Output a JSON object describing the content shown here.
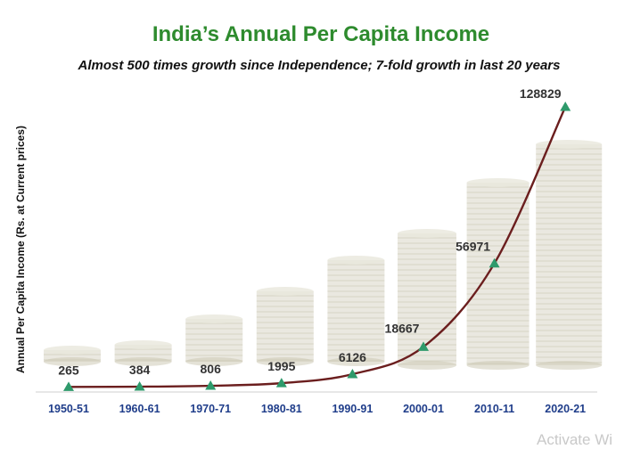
{
  "chart_data": {
    "type": "line",
    "title": "India’s Annual Per Capita Income",
    "subtitle": "Almost 500 times growth since Independence; 7-fold growth in last 20 years",
    "ylabel": "Annual Per Capita Income (Rs. at Current prices)",
    "xlabel": "",
    "categories": [
      "1950-51",
      "1960-61",
      "1970-71",
      "1980-81",
      "1990-91",
      "2000-01",
      "2010-11",
      "2020-21"
    ],
    "series": [
      {
        "values": [
          265,
          384,
          806,
          1995,
          6126,
          18667,
          56971,
          128829
        ]
      }
    ],
    "labels": [
      "265",
      "384",
      "806",
      "1995",
      "6126",
      "18667",
      "56971",
      "128829"
    ],
    "ylim": [
      0,
      140000
    ],
    "grid": false,
    "legend": "none",
    "colors": {
      "title": "#2e8b2e",
      "line": "#6b1e1e",
      "marker": "#2e9a6b",
      "tick_labels": "#1f3d8a",
      "data_labels": "#333333",
      "coins": "#d9d6c6"
    }
  },
  "watermark": "Activate Wi"
}
